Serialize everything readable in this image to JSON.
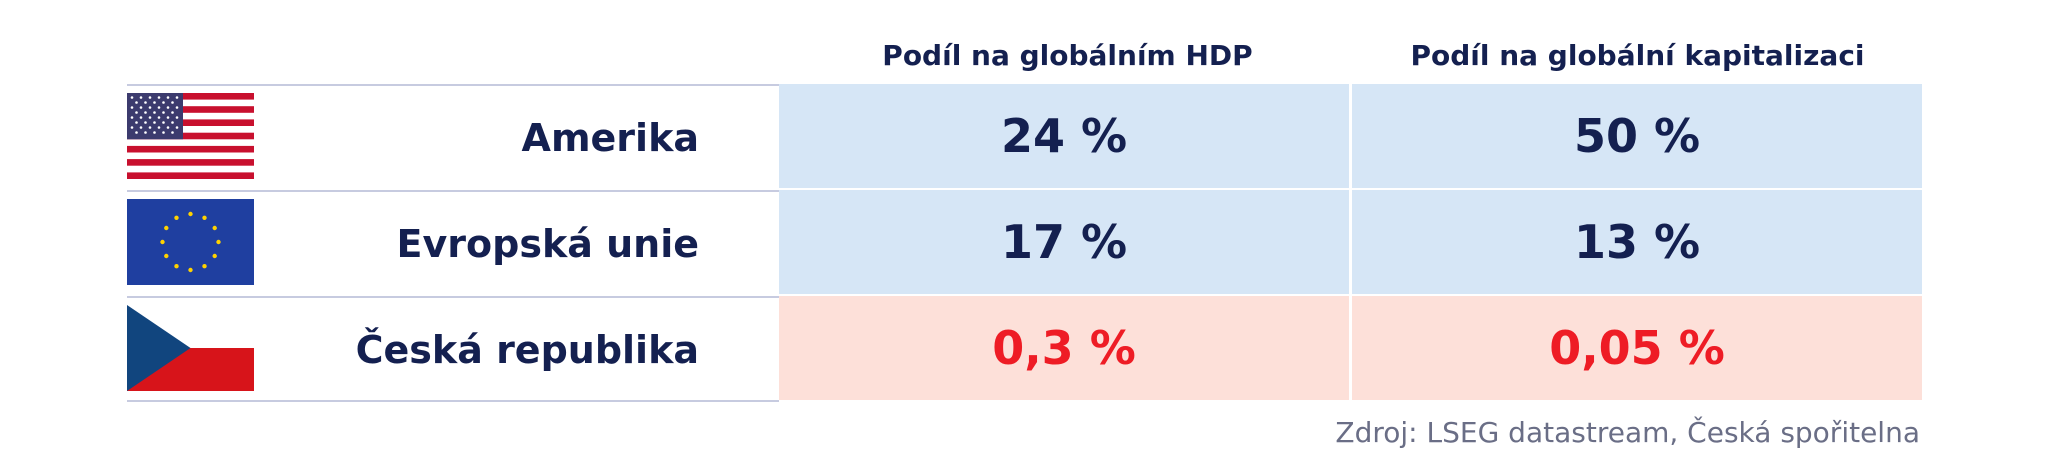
{
  "chart_data": {
    "type": "table",
    "columns": [
      "",
      "Podíl na globálním HDP",
      "Podíl na globální kapitalizaci"
    ],
    "rows": [
      {
        "flag": "us-flag-icon",
        "country": "Amerika",
        "gdp_share": "24 %",
        "cap_share": "50 %"
      },
      {
        "flag": "eu-flag-icon",
        "country": "Evropská unie",
        "gdp_share": "17 %",
        "cap_share": "13 %"
      },
      {
        "flag": "cz-flag-icon",
        "country": "Česká republika",
        "gdp_share": "0,3 %",
        "cap_share": "0,05 %"
      }
    ],
    "values": {
      "gdp_share_percent": [
        24,
        17,
        0.3
      ],
      "cap_share_percent": [
        50,
        13,
        0.05
      ]
    },
    "colors": {
      "text_navy": "#142050",
      "highlight_red": "#ee1c25",
      "blue_cell": "#d6e6f6",
      "pink_cell": "#fde0d9"
    }
  },
  "source": "Zdroj: LSEG datastream, Česká spořitelna"
}
